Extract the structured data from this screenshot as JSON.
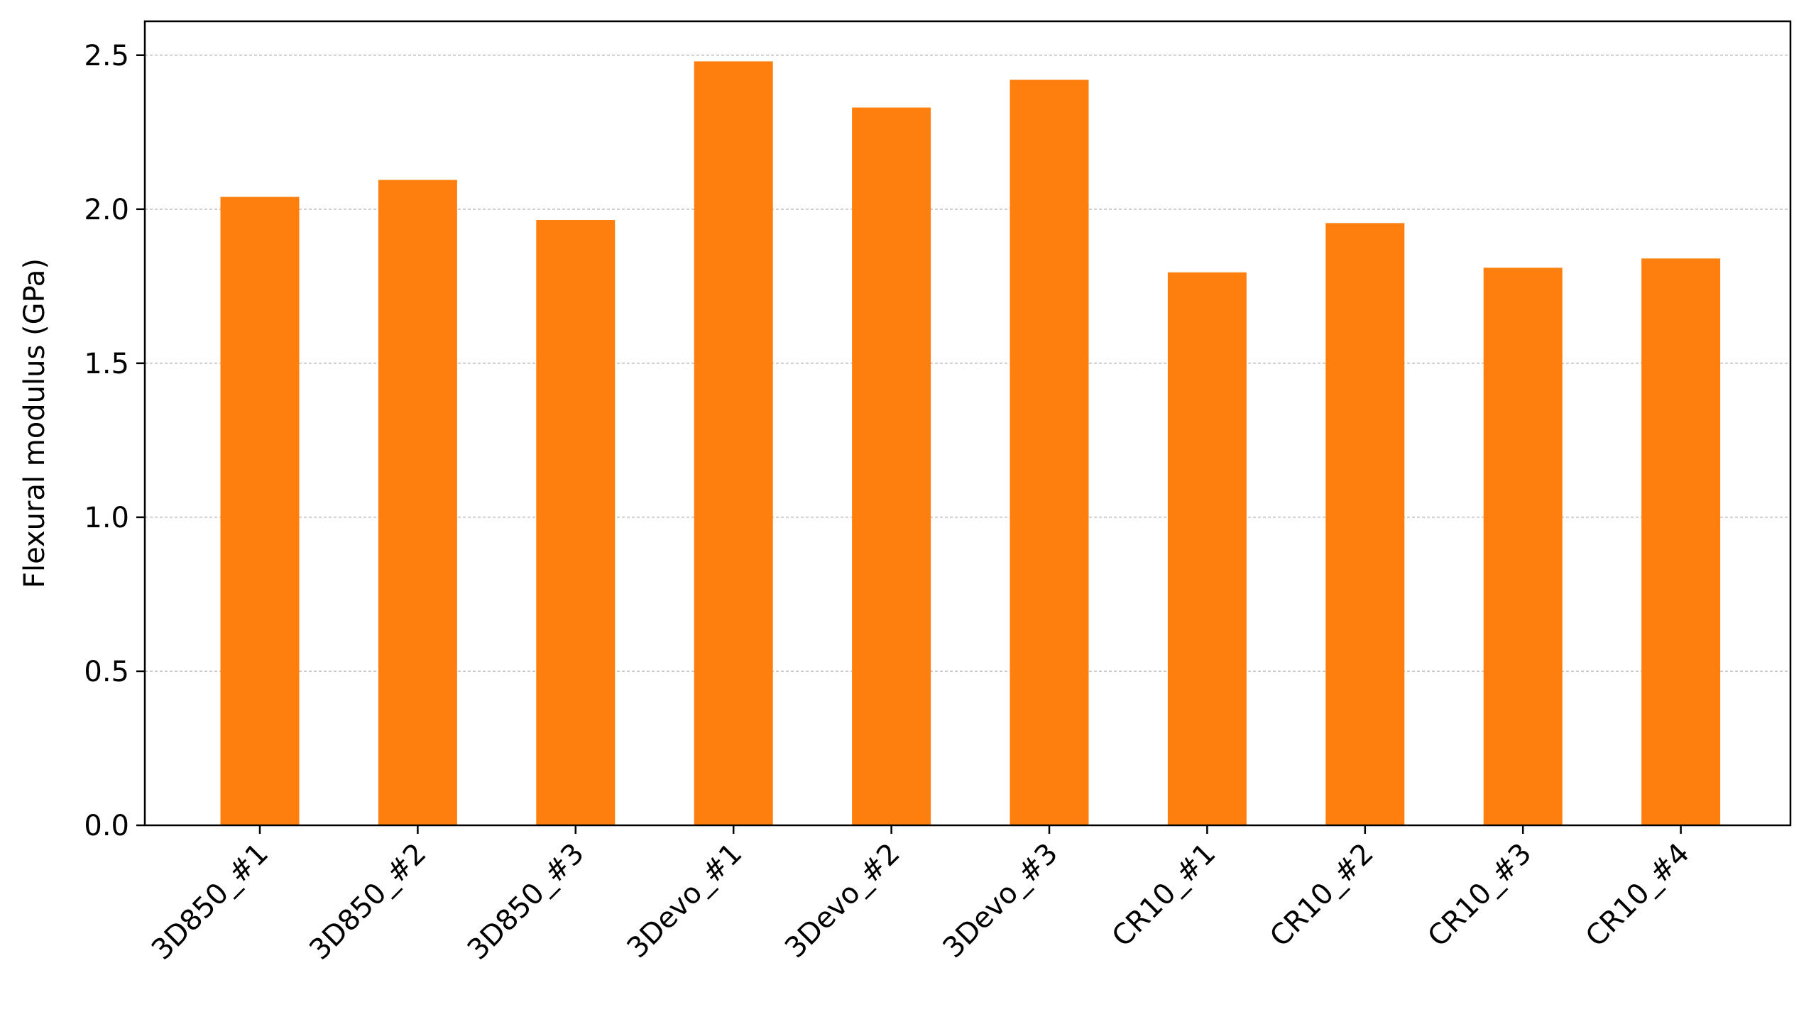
{
  "chart_data": {
    "type": "bar",
    "title": "",
    "xlabel": "",
    "ylabel": "Flexural modulus (GPa)",
    "categories": [
      "3D850_#1",
      "3D850_#2",
      "3D850_#3",
      "3Devo_#1",
      "3Devo_#2",
      "3Devo_#3",
      "CR10_#1",
      "CR10_#2",
      "CR10_#3",
      "CR10_#4"
    ],
    "values": [
      2.04,
      2.095,
      1.965,
      2.48,
      2.33,
      2.42,
      1.795,
      1.955,
      1.81,
      1.84
    ],
    "ylim": [
      0,
      2.61
    ],
    "yticks": [
      "0.0",
      "0.5",
      "1.0",
      "1.5",
      "2.0",
      "2.5"
    ],
    "grid": "y-dashed",
    "bar_color": "#ff7f0e",
    "xtick_rotation": "45"
  }
}
